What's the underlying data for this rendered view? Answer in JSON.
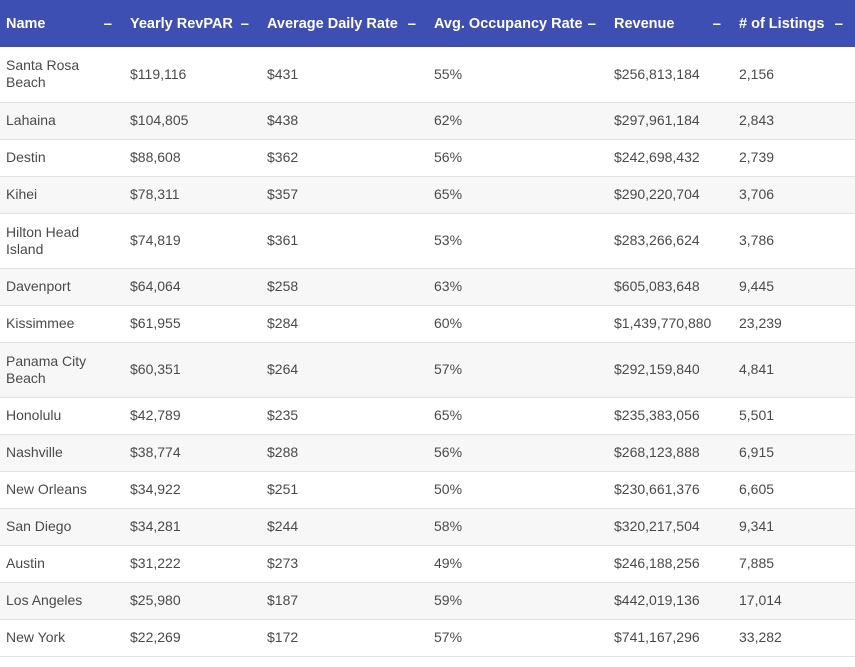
{
  "table": {
    "headers": [
      {
        "label": "Name",
        "sort": "–"
      },
      {
        "label": "Yearly RevPAR",
        "sort": "–"
      },
      {
        "label": "Average Daily Rate",
        "sort": "–"
      },
      {
        "label": "Avg. Occupancy Rate",
        "sort": "–"
      },
      {
        "label": "Revenue",
        "sort": "–"
      },
      {
        "label": "# of Listings",
        "sort": "–"
      }
    ],
    "rows": [
      [
        "Santa Rosa Beach",
        "$119,116",
        "$431",
        "55%",
        "$256,813,184",
        "2,156"
      ],
      [
        "Lahaina",
        "$104,805",
        "$438",
        "62%",
        "$297,961,184",
        "2,843"
      ],
      [
        "Destin",
        "$88,608",
        "$362",
        "56%",
        "$242,698,432",
        "2,739"
      ],
      [
        "Kihei",
        "$78,311",
        "$357",
        "65%",
        "$290,220,704",
        "3,706"
      ],
      [
        "Hilton Head Island",
        "$74,819",
        "$361",
        "53%",
        "$283,266,624",
        "3,786"
      ],
      [
        "Davenport",
        "$64,064",
        "$258",
        "63%",
        "$605,083,648",
        "9,445"
      ],
      [
        "Kissimmee",
        "$61,955",
        "$284",
        "60%",
        "$1,439,770,880",
        "23,239"
      ],
      [
        "Panama City Beach",
        "$60,351",
        "$264",
        "57%",
        "$292,159,840",
        "4,841"
      ],
      [
        "Honolulu",
        "$42,789",
        "$235",
        "65%",
        "$235,383,056",
        "5,501"
      ],
      [
        "Nashville",
        "$38,774",
        "$288",
        "56%",
        "$268,123,888",
        "6,915"
      ],
      [
        "New Orleans",
        "$34,922",
        "$251",
        "50%",
        "$230,661,376",
        "6,605"
      ],
      [
        "San Diego",
        "$34,281",
        "$244",
        "58%",
        "$320,217,504",
        "9,341"
      ],
      [
        "Austin",
        "$31,222",
        "$273",
        "49%",
        "$246,188,256",
        "7,885"
      ],
      [
        "Los Angeles",
        "$25,980",
        "$187",
        "59%",
        "$442,019,136",
        "17,014"
      ],
      [
        "New York",
        "$22,269",
        "$172",
        "57%",
        "$741,167,296",
        "33,282"
      ]
    ]
  },
  "colors": {
    "header_bg": "#3e4fb4",
    "header_text": "#ffffff",
    "row_alt_bg": "#f7f7f7",
    "text": "#4a4a4a"
  }
}
